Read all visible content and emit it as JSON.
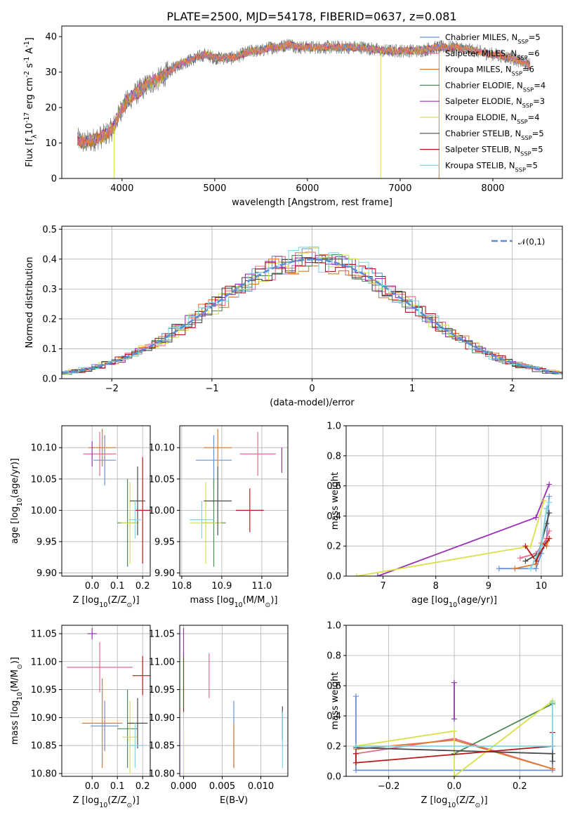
{
  "figure_title": "PLATE=2500, MJD=54178, FIBERID=0637, z=0.081",
  "colors": {
    "Chabrier MILES": "#6b8fd6",
    "Salpeter MILES": "#e86a8a",
    "Kroupa MILES": "#e07a2e",
    "Chabrier ELODIE": "#4f8a5a",
    "Salpeter ELODIE": "#9a2fb6",
    "Kroupa ELODIE": "#d8e04a",
    "Chabrier STELIB": "#4b4b4b",
    "Salpeter STELIB": "#b31b1b",
    "Kroupa STELIB": "#7fd6e6",
    "gaussian": "#5b8ed6"
  },
  "chart_data": [
    {
      "type": "line",
      "title": "PLATE=2500, MJD=54178, FIBERID=0637, z=0.081",
      "xlabel": "wavelength [Angstrom, rest frame]",
      "ylabel": "Flux [f$_\\lambda$10$^{-17}$ erg cm$^{-2}$ s$^{-1}$ A$^{-1}$]",
      "xlim": [
        3350,
        8750
      ],
      "ylim": [
        0,
        43
      ],
      "xticks": [
        4000,
        5000,
        6000,
        7000,
        8000
      ],
      "yticks": [
        0,
        10,
        20,
        30,
        40
      ],
      "legend_position": "right",
      "legend": [
        {
          "label": "Chabrier MILES, N$_{SSP}$=5",
          "model": "Chabrier MILES"
        },
        {
          "label": "Salpeter MILES, N$_{SSP}$=6",
          "model": "Salpeter MILES"
        },
        {
          "label": "Kroupa MILES, N$_{SSP}$=6",
          "model": "Kroupa MILES"
        },
        {
          "label": "Chabrier ELODIE, N$_{SSP}$=4",
          "model": "Chabrier ELODIE"
        },
        {
          "label": "Salpeter ELODIE, N$_{SSP}$=3",
          "model": "Salpeter ELODIE"
        },
        {
          "label": "Kroupa ELODIE, N$_{SSP}$=4",
          "model": "Kroupa ELODIE"
        },
        {
          "label": "Chabrier STELIB, N$_{SSP}$=5",
          "model": "Chabrier STELIB"
        },
        {
          "label": "Salpeter STELIB, N$_{SSP}$=5",
          "model": "Salpeter STELIB"
        },
        {
          "label": "Kroupa STELIB, N$_{SSP}$=5",
          "model": "Kroupa STELIB"
        }
      ],
      "continuum": {
        "x": [
          3520,
          3600,
          3700,
          3800,
          3900,
          4000,
          4100,
          4200,
          4300,
          4400,
          4500,
          4600,
          4700,
          4800,
          4900,
          5000,
          5100,
          5200,
          5300,
          5400,
          5500,
          5600,
          5700,
          5800,
          5900,
          6000,
          6200,
          6400,
          6600,
          6800,
          7000,
          7200,
          7400,
          7600,
          7800,
          8000,
          8200,
          8400
        ],
        "y": [
          11,
          10,
          11,
          12,
          14,
          20,
          23,
          25,
          27,
          28,
          30,
          32,
          33,
          34,
          35,
          34,
          34,
          34,
          35,
          36,
          36,
          37,
          37,
          38,
          37,
          37,
          37,
          37,
          37,
          36,
          36,
          36,
          37,
          37,
          36,
          35,
          34,
          32
        ]
      },
      "dropouts": [
        {
          "model": "Kroupa ELODIE",
          "x": 3915
        },
        {
          "model": "Kroupa ELODIE",
          "x": 6790
        },
        {
          "model": "Kroupa MILES",
          "x": 7420
        }
      ]
    },
    {
      "type": "line",
      "xlabel": "(data-model)/error",
      "ylabel": "Normed distribution",
      "xlim": [
        -2.5,
        2.5
      ],
      "ylim": [
        0,
        0.51
      ],
      "xticks": [
        -2,
        -1,
        0,
        1,
        2
      ],
      "yticks": [
        0.0,
        0.1,
        0.2,
        0.3,
        0.4,
        0.5
      ],
      "legend": "$\\mathcal{N}(0,1)$",
      "bin_width": 0.1,
      "note": "step histograms for each model; the dashed line is the standard normal density",
      "gaussian": {
        "mean": 0,
        "sigma": 1
      }
    },
    {
      "type": "scatter",
      "xlabel": "Z [log$_{10}$(Z/Z$_\\odot$)]",
      "ylabel": "age  [log$_{10}$(age/yr)]",
      "xlim": [
        -0.12,
        0.23
      ],
      "ylim": [
        9.895,
        10.135
      ],
      "xticks": [
        0.0,
        0.1,
        0.2
      ],
      "yticks": [
        9.9,
        9.95,
        10.0,
        10.05,
        10.1
      ],
      "points": [
        {
          "model": "Chabrier MILES",
          "x": 0.05,
          "y": 10.08,
          "xerr": 0.045,
          "yerr": 0.04
        },
        {
          "model": "Salpeter MILES",
          "x": 0.03,
          "y": 10.09,
          "xerr": 0.065,
          "yerr": 0.035
        },
        {
          "model": "Kroupa MILES",
          "x": 0.04,
          "y": 10.1,
          "xerr": 0.055,
          "yerr": 0.03
        },
        {
          "model": "Chabrier ELODIE",
          "x": 0.14,
          "y": 9.98,
          "xerr": 0.04,
          "yerr": 0.07
        },
        {
          "model": "Salpeter ELODIE",
          "x": 0.0,
          "y": 10.09,
          "xerr": 0.0,
          "yerr": 0.02
        },
        {
          "model": "Kroupa ELODIE",
          "x": 0.15,
          "y": 9.98,
          "xerr": 0.035,
          "yerr": 0.065
        },
        {
          "model": "Chabrier STELIB",
          "x": 0.18,
          "y": 10.015,
          "xerr": 0.03,
          "yerr": 0.055
        },
        {
          "model": "Salpeter STELIB",
          "x": 0.2,
          "y": 10.0,
          "xerr": 0.03,
          "yerr": 0.085
        },
        {
          "model": "Kroupa STELIB",
          "x": 0.17,
          "y": 9.985,
          "xerr": 0.025,
          "yerr": 0.03
        }
      ]
    },
    {
      "type": "scatter",
      "xlabel": "mass [log$_{10}$(M/M$_\\odot$)]",
      "ylim": [
        9.895,
        10.135
      ],
      "xlim": [
        10.795,
        11.065
      ],
      "xticks": [
        10.8,
        10.9,
        11.0
      ],
      "yticks": [
        9.9,
        9.95,
        10.0,
        10.05,
        10.1
      ],
      "points": [
        {
          "model": "Chabrier MILES",
          "x": 10.88,
          "y": 10.08,
          "xerr": 0.045,
          "yerr": 0.04
        },
        {
          "model": "Salpeter MILES",
          "x": 10.99,
          "y": 10.09,
          "xerr": 0.045,
          "yerr": 0.035
        },
        {
          "model": "Kroupa MILES",
          "x": 10.89,
          "y": 10.1,
          "xerr": 0.035,
          "yerr": 0.03
        },
        {
          "model": "Chabrier ELODIE",
          "x": 10.88,
          "y": 9.98,
          "xerr": 0.03,
          "yerr": 0.07
        },
        {
          "model": "Salpeter ELODIE",
          "x": 11.05,
          "y": 10.08,
          "xerr": 0.0,
          "yerr": 0.02
        },
        {
          "model": "Kroupa ELODIE",
          "x": 10.86,
          "y": 9.98,
          "xerr": 0.04,
          "yerr": 0.065
        },
        {
          "model": "Chabrier STELIB",
          "x": 10.89,
          "y": 10.015,
          "xerr": 0.035,
          "yerr": 0.055
        },
        {
          "model": "Salpeter STELIB",
          "x": 10.97,
          "y": 10.0,
          "xerr": 0.035,
          "yerr": 0.035
        },
        {
          "model": "Kroupa STELIB",
          "x": 10.85,
          "y": 9.985,
          "xerr": 0.03,
          "yerr": 0.03
        }
      ]
    },
    {
      "type": "line",
      "xlabel": "age  [log$_{10}$(age/yr)]",
      "ylabel": "mass weight",
      "xlim": [
        6.3,
        10.4
      ],
      "ylim": [
        0,
        1.0
      ],
      "xticks": [
        7,
        8,
        9,
        10
      ],
      "yticks": [
        0.0,
        0.2,
        0.4,
        0.6,
        0.8,
        1.0
      ],
      "series": [
        {
          "model": "Chabrier MILES",
          "x": [
            9.2,
            9.9,
            10.0,
            10.1,
            10.15
          ],
          "y": [
            0.05,
            0.05,
            0.15,
            0.25,
            0.53
          ]
        },
        {
          "model": "Salpeter MILES",
          "x": [
            9.6,
            9.9,
            10.0,
            10.1,
            10.15
          ],
          "y": [
            0.12,
            0.15,
            0.2,
            0.25,
            0.3
          ]
        },
        {
          "model": "Kroupa MILES",
          "x": [
            9.5,
            9.9,
            10.0,
            10.1,
            10.15
          ],
          "y": [
            0.05,
            0.08,
            0.22,
            0.2,
            0.25
          ]
        },
        {
          "model": "Chabrier ELODIE",
          "x": [
            9.9,
            10.0,
            10.1
          ],
          "y": [
            0.1,
            0.2,
            0.45
          ]
        },
        {
          "model": "Salpeter ELODIE",
          "x": [
            6.9,
            9.9,
            10.15
          ],
          "y": [
            0.0,
            0.39,
            0.61
          ]
        },
        {
          "model": "Kroupa ELODIE",
          "x": [
            6.5,
            9.8,
            10.05
          ],
          "y": [
            0.0,
            0.2,
            0.5
          ]
        },
        {
          "model": "Chabrier STELIB",
          "x": [
            9.7,
            9.95,
            10.1,
            10.15
          ],
          "y": [
            0.1,
            0.15,
            0.35,
            0.42
          ]
        },
        {
          "model": "Salpeter STELIB",
          "x": [
            9.7,
            9.9,
            10.05,
            10.15
          ],
          "y": [
            0.2,
            0.1,
            0.2,
            0.25
          ]
        },
        {
          "model": "Kroupa STELIB",
          "x": [
            9.8,
            10.0,
            10.1,
            10.15
          ],
          "y": [
            0.05,
            0.2,
            0.45,
            0.49
          ]
        }
      ]
    },
    {
      "type": "scatter",
      "xlabel": "Z [log$_{10}$(Z/Z$_\\odot$)]",
      "ylabel": "mass [log$_{10}$(M/M$_\\odot$)]",
      "xlim": [
        -0.12,
        0.23
      ],
      "ylim": [
        10.795,
        11.065
      ],
      "xticks": [
        0.0,
        0.1,
        0.2
      ],
      "yticks": [
        10.8,
        10.85,
        10.9,
        10.95,
        11.0,
        11.05
      ],
      "points": [
        {
          "model": "Chabrier MILES",
          "x": 0.05,
          "y": 10.885,
          "xerr": 0.055,
          "yerr": 0.045
        },
        {
          "model": "Salpeter MILES",
          "x": 0.03,
          "y": 10.99,
          "xerr": 0.13,
          "yerr": 0.045
        },
        {
          "model": "Kroupa MILES",
          "x": 0.04,
          "y": 10.89,
          "xerr": 0.08,
          "yerr": 0.08
        },
        {
          "model": "Chabrier ELODIE",
          "x": 0.14,
          "y": 10.88,
          "xerr": 0.04,
          "yerr": 0.07
        },
        {
          "model": "Salpeter ELODIE",
          "x": 0.0,
          "y": 11.05,
          "xerr": 0.018,
          "yerr": 0.01
        },
        {
          "model": "Kroupa ELODIE",
          "x": 0.15,
          "y": 10.865,
          "xerr": 0.03,
          "yerr": 0.065
        },
        {
          "model": "Chabrier STELIB",
          "x": 0.18,
          "y": 10.89,
          "xerr": 0.04,
          "yerr": 0.045
        },
        {
          "model": "Salpeter STELIB",
          "x": 0.2,
          "y": 10.975,
          "xerr": 0.04,
          "yerr": 0.035
        },
        {
          "model": "Kroupa STELIB",
          "x": 0.17,
          "y": 10.85,
          "xerr": 0.03,
          "yerr": 0.04
        }
      ]
    },
    {
      "type": "scatter",
      "xlabel": "E(B-V)",
      "xlim": [
        -0.0005,
        0.0135
      ],
      "ylim": [
        10.795,
        11.065
      ],
      "xticks": [
        0.0,
        0.005,
        0.01
      ],
      "xtick_labels": [
        "0.000",
        "0.005",
        "0.010"
      ],
      "yticks": [
        10.8,
        10.85,
        10.9,
        10.95,
        11.0,
        11.05
      ],
      "points": [
        {
          "model": "Salpeter ELODIE",
          "x": 0.0,
          "y": 11.035,
          "yerr": 0.025
        },
        {
          "model": "Salpeter STELIB",
          "x": 0.0,
          "y": 10.96,
          "yerr": 0.05
        },
        {
          "model": "Kroupa ELODIE",
          "x": 0.0,
          "y": 10.84,
          "yerr": 0.045
        },
        {
          "model": "Salpeter MILES",
          "x": 0.0033,
          "y": 10.975,
          "yerr": 0.04
        },
        {
          "model": "Chabrier MILES",
          "x": 0.0065,
          "y": 10.87,
          "yerr": 0.06
        },
        {
          "model": "Kroupa MILES",
          "x": 0.0065,
          "y": 10.85,
          "yerr": 0.04
        },
        {
          "model": "Chabrier STELIB",
          "x": 0.0128,
          "y": 10.89,
          "yerr": 0.03
        },
        {
          "model": "Kroupa STELIB",
          "x": 0.0128,
          "y": 10.86,
          "yerr": 0.05
        }
      ]
    },
    {
      "type": "line",
      "xlabel": "Z [log$_{10}$(Z/Z$_\\odot$)]",
      "ylabel": "mass weight",
      "xlim": [
        -0.33,
        0.33
      ],
      "ylim": [
        0,
        1.0
      ],
      "xticks": [
        -0.2,
        0.0,
        0.2
      ],
      "yticks": [
        0.0,
        0.2,
        0.4,
        0.6,
        0.8,
        1.0
      ],
      "series": [
        {
          "model": "Chabrier MILES",
          "x": [
            -0.3,
            -0.3,
            0.0,
            0.3,
            0.3
          ],
          "y": [
            0.53,
            0.04,
            0.04,
            0.04,
            0.2
          ]
        },
        {
          "model": "Salpeter MILES",
          "x": [
            -0.3,
            0.0,
            0.3
          ],
          "y": [
            0.15,
            0.25,
            0.05
          ]
        },
        {
          "model": "Kroupa MILES",
          "x": [
            -0.3,
            0.0,
            0.3
          ],
          "y": [
            0.18,
            0.24,
            0.05
          ]
        },
        {
          "model": "Chabrier ELODIE",
          "x": [
            0.0,
            0.3
          ],
          "y": [
            0.15,
            0.48
          ]
        },
        {
          "model": "Salpeter ELODIE",
          "x": [
            0.0,
            0.0
          ],
          "y": [
            0.62,
            0.38
          ]
        },
        {
          "model": "Kroupa ELODIE",
          "x": [
            -0.3,
            0.0,
            0.0,
            0.3
          ],
          "y": [
            0.2,
            0.3,
            0.0,
            0.5
          ]
        },
        {
          "model": "Chabrier STELIB",
          "x": [
            -0.3,
            0.3,
            0.3
          ],
          "y": [
            0.19,
            0.15,
            0.1
          ]
        },
        {
          "model": "Salpeter STELIB",
          "x": [
            -0.3,
            -0.3,
            0.3,
            0.3
          ],
          "y": [
            0.15,
            0.09,
            0.2,
            0.29
          ]
        },
        {
          "model": "Kroupa STELIB",
          "x": [
            -0.3,
            0.3,
            0.3
          ],
          "y": [
            0.2,
            0.2,
            0.49
          ]
        }
      ]
    }
  ]
}
